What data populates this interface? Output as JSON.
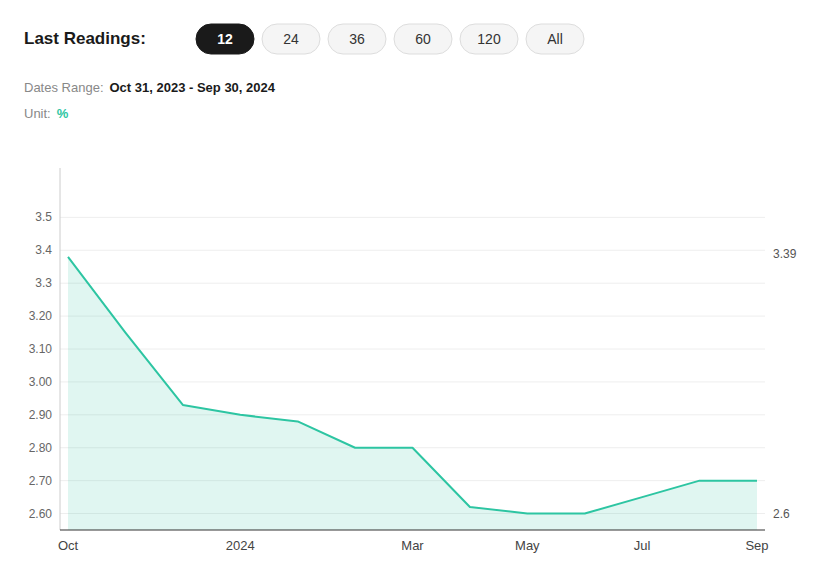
{
  "chart_data": {
    "type": "area",
    "categories": [
      "Oct",
      null,
      null,
      "2024",
      null,
      null,
      "Mar",
      null,
      "May",
      null,
      "Jul",
      null,
      "Sep"
    ],
    "values": [
      3.38,
      3.15,
      2.93,
      2.9,
      2.88,
      2.8,
      2.8,
      2.62,
      2.6,
      2.6,
      2.65,
      2.7,
      2.7
    ],
    "color": "#2DC5A2",
    "ylim": [
      2.55,
      3.65
    ],
    "yticks": [
      {
        "value": 2.6,
        "label": "2.60"
      },
      {
        "value": 2.7,
        "label": "2.70"
      },
      {
        "value": 2.8,
        "label": "2.80"
      },
      {
        "value": 2.9,
        "label": "2.90"
      },
      {
        "value": 3.0,
        "label": "3.00"
      },
      {
        "value": 3.1,
        "label": "3.10"
      },
      {
        "value": 3.2,
        "label": "3.20"
      },
      3.3,
      3.4,
      3.5
    ],
    "grid": true,
    "annotations": [
      {
        "text": "3.39",
        "y": 3.39
      },
      {
        "text": "2.6",
        "y": 2.6
      }
    ],
    "controls": {
      "label": "Last Readings:",
      "buttons": [
        "12",
        "24",
        "36",
        "60",
        "120",
        "All"
      ],
      "active": "12"
    },
    "info": [
      {
        "label": "Dates Range:",
        "value": "Oct 31, 2023 - Sep 30, 2024",
        "color": "#1a1a1a"
      },
      {
        "label": "Unit:",
        "value": "%",
        "color": "#2DC5A2"
      }
    ]
  }
}
